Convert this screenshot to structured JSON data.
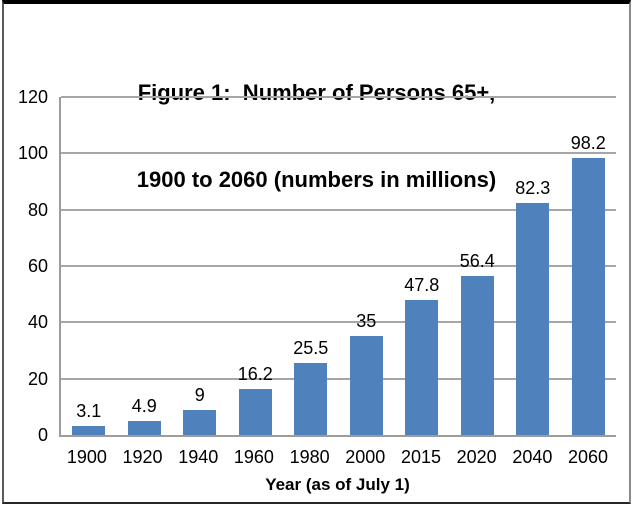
{
  "figure": {
    "title_lines": [
      "Figure 1:  Number of Persons 65+,",
      "1900 to 2060 (numbers in millions)"
    ]
  },
  "chart_data": {
    "type": "bar",
    "title": "Figure 1: Number of Persons 65+, 1900 to 2060 (numbers in millions)",
    "categories": [
      "1900",
      "1920",
      "1940",
      "1960",
      "1980",
      "2000",
      "2015",
      "2020",
      "2040",
      "2060"
    ],
    "values": [
      3.1,
      4.9,
      9,
      16.2,
      25.5,
      35,
      47.8,
      56.4,
      82.3,
      98.2
    ],
    "data_labels": [
      "3.1",
      "4.9",
      "9",
      "16.2",
      "25.5",
      "35",
      "47.8",
      "56.4",
      "82.3",
      "98.2"
    ],
    "xlabel": "Year (as of July 1)",
    "ylabel": "",
    "ylim": [
      0,
      120
    ],
    "yticks": [
      0,
      20,
      40,
      60,
      80,
      100,
      120
    ],
    "grid": true,
    "legend": false,
    "colors": {
      "bar_fill": "#4F81BD",
      "gridline": "#a6a6a6",
      "axis_line": "#9c9c9c",
      "text": "#000000"
    }
  }
}
